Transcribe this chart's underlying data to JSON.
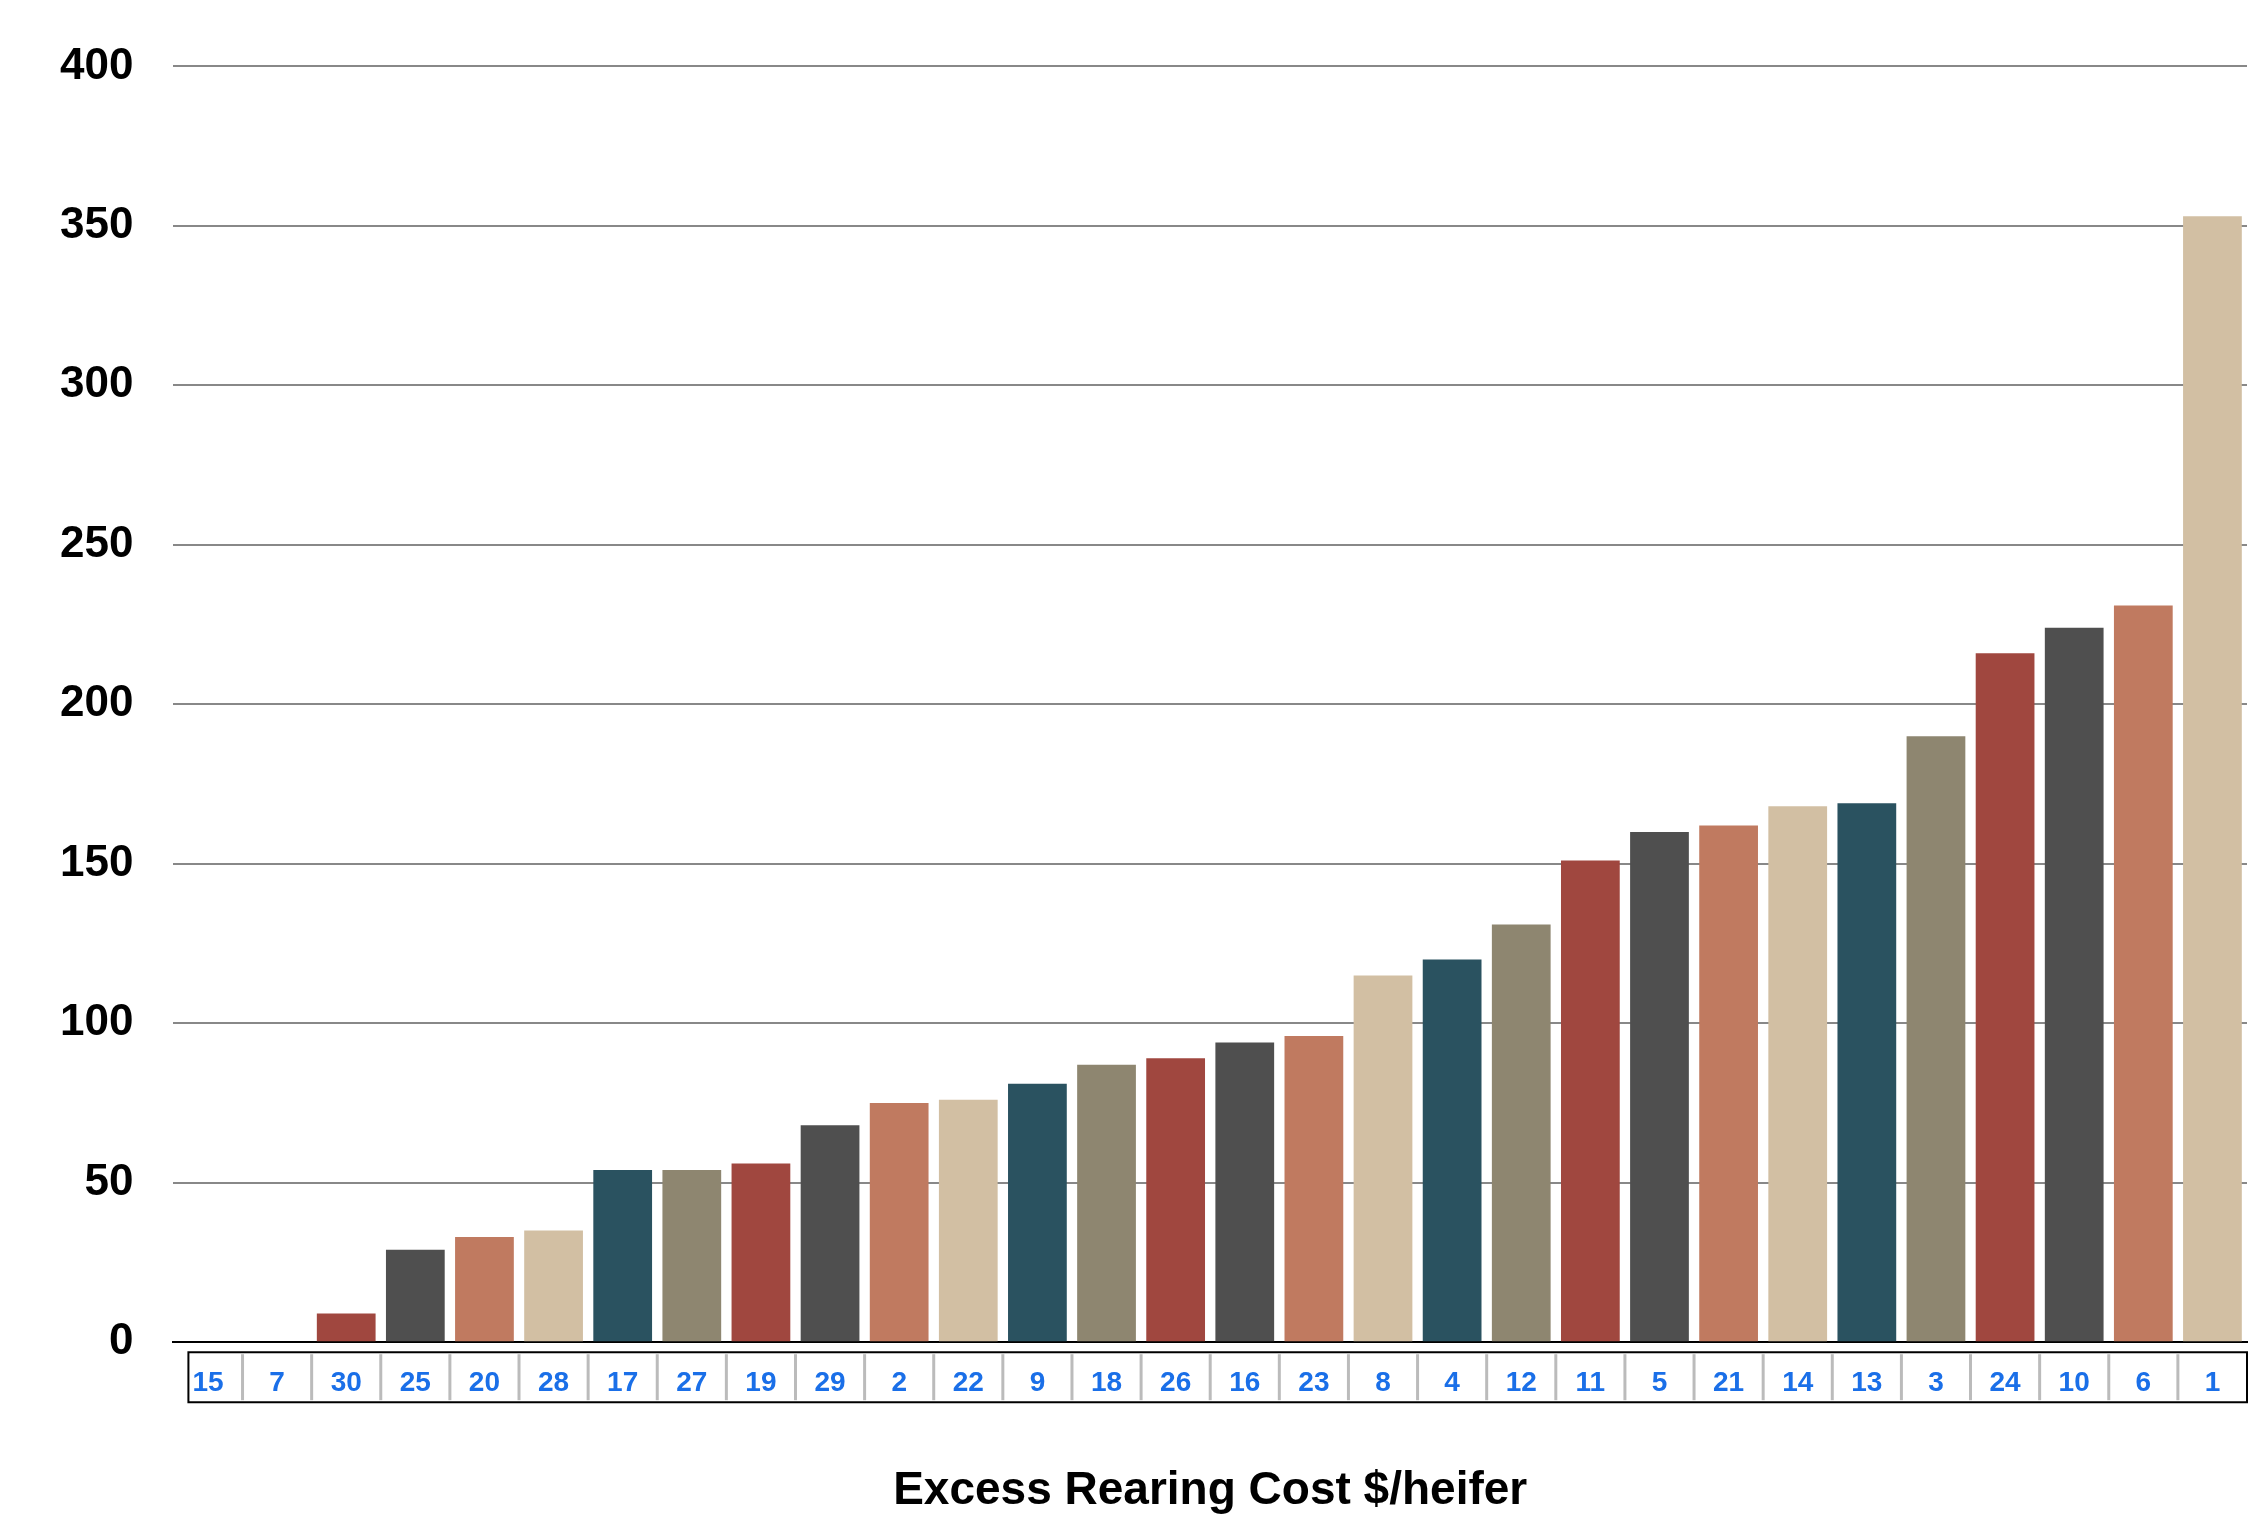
{
  "chart_data": {
    "type": "bar",
    "xlabel": "Excess Rearing Cost $/heifer",
    "categories": [
      "15",
      "7",
      "30",
      "25",
      "20",
      "28",
      "17",
      "27",
      "19",
      "29",
      "2",
      "22",
      "9",
      "18",
      "26",
      "16",
      "23",
      "8",
      "4",
      "12",
      "11",
      "5",
      "21",
      "14",
      "13",
      "3",
      "24",
      "10",
      "6",
      "1"
    ],
    "values": [
      0,
      0,
      9,
      29,
      33,
      35,
      54,
      54,
      56,
      68,
      75,
      76,
      81,
      87,
      89,
      94,
      96,
      115,
      120,
      131,
      151,
      160,
      162,
      168,
      169,
      190,
      216,
      224,
      231,
      353
    ],
    "colors": [
      "#2a5260",
      "#8e8670",
      "#a0473f",
      "#4f4f4f",
      "#c07a60",
      "#d2bfa3",
      "#2a5260",
      "#8e8670",
      "#a0473f",
      "#4f4f4f",
      "#c07a60",
      "#d2bfa3",
      "#2a5260",
      "#8e8670",
      "#a0473f",
      "#4f4f4f",
      "#c07a60",
      "#d2bfa3",
      "#2a5260",
      "#8e8670",
      "#a0473f",
      "#4f4f4f",
      "#c07a60",
      "#d2bfa3",
      "#2a5260",
      "#8e8670",
      "#a0473f",
      "#4f4f4f",
      "#c07a60",
      "#d2bfa3"
    ],
    "ylim": [
      0,
      400
    ],
    "yticks": [
      0,
      50,
      100,
      150,
      200,
      250,
      300,
      350,
      400
    ],
    "grid": "y",
    "legend": false
  }
}
